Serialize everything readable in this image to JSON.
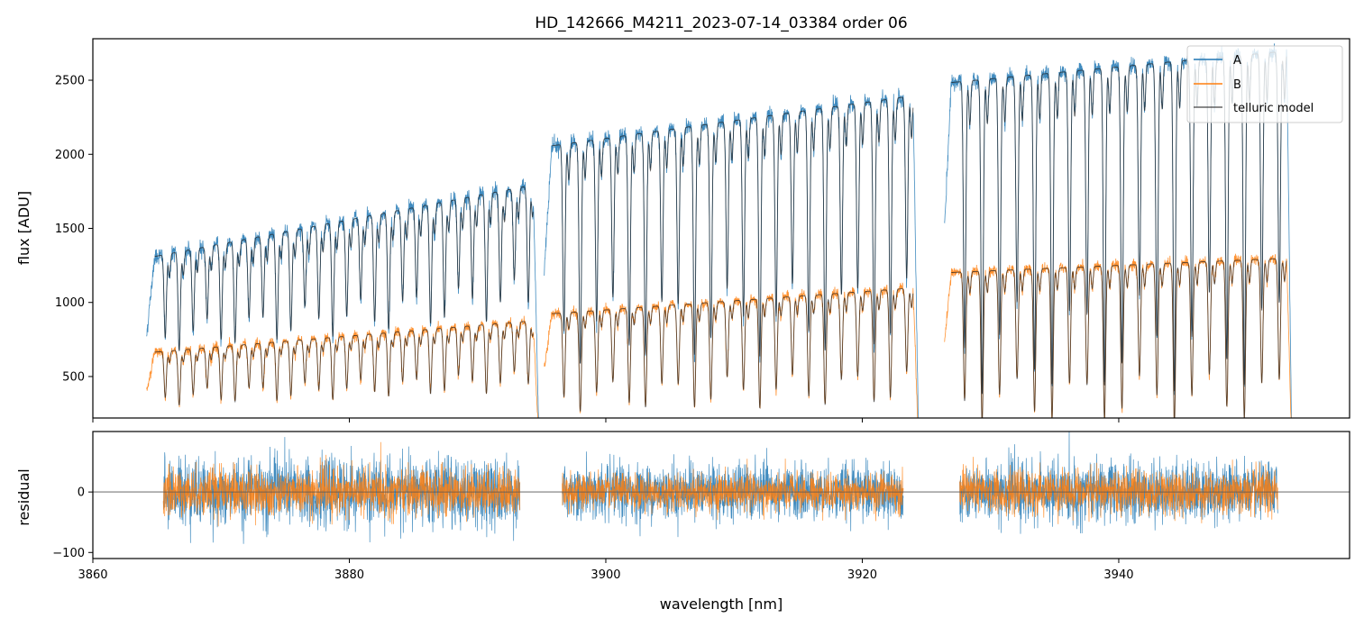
{
  "title": "HD_142666_M4211_2023-07-14_03384  order 06",
  "colors": {
    "A": "#1f77b4",
    "B": "#ff7f0e",
    "model": "#222222",
    "zero_line": "#555555"
  },
  "chart_data": [
    {
      "type": "line",
      "panel": "spectrum",
      "ylabel": "flux [ADU]",
      "xlim": [
        3860,
        3958
      ],
      "ylim": [
        220,
        2780
      ],
      "xticks": [
        3860,
        3880,
        3900,
        3920,
        3940
      ],
      "yticks": [
        500,
        1000,
        1500,
        2000,
        2500
      ],
      "ytick_labels": [
        "500",
        "1000",
        "1500",
        "2000",
        "2500"
      ],
      "legend_position": "top-right",
      "legend": [
        "A",
        "B",
        "telluric model"
      ],
      "segments": [
        {
          "x_range": [
            3864.2,
            3894.8
          ],
          "A_continuum": [
            1300,
            1800
          ],
          "B_continuum": [
            660,
            880
          ],
          "line_depth_A": 0.5,
          "line_depth_B": 0.55
        },
        {
          "x_range": [
            3895.2,
            3924.4
          ],
          "A_continuum": [
            2050,
            2400
          ],
          "B_continuum": [
            920,
            1100
          ],
          "line_depth_A": 0.72,
          "line_depth_B": 0.72
        },
        {
          "x_range": [
            3926.4,
            3953.5
          ],
          "A_continuum": [
            2480,
            2700
          ],
          "B_continuum": [
            1200,
            1300
          ],
          "line_depth_A": 0.85,
          "line_depth_B": 0.85
        }
      ],
      "series": [
        {
          "name": "A",
          "color": "#1f77b4"
        },
        {
          "name": "B",
          "color": "#ff7f0e"
        },
        {
          "name": "telluric model",
          "color": "#222222"
        }
      ]
    },
    {
      "type": "line",
      "panel": "residual",
      "xlabel": "wavelength [nm]",
      "ylabel": "residual",
      "xlim": [
        3860,
        3958
      ],
      "ylim": [
        -110,
        100
      ],
      "xticks": [
        3860,
        3880,
        3900,
        3920,
        3940
      ],
      "xtick_labels": [
        "3860",
        "3880",
        "3900",
        "3920",
        "3940"
      ],
      "yticks": [
        -100,
        0
      ],
      "ytick_labels": [
        "−100",
        "0"
      ],
      "zero_line": 0,
      "segments": [
        {
          "x_range": [
            3865.5,
            3893.3
          ],
          "A_scatter": 50,
          "B_scatter": 35
        },
        {
          "x_range": [
            3896.6,
            3923.2
          ],
          "A_scatter": 40,
          "B_scatter": 28
        },
        {
          "x_range": [
            3927.6,
            3952.4
          ],
          "A_scatter": 45,
          "B_scatter": 32
        }
      ],
      "series": [
        {
          "name": "A",
          "color": "#1f77b4"
        },
        {
          "name": "B",
          "color": "#ff7f0e"
        }
      ]
    }
  ]
}
